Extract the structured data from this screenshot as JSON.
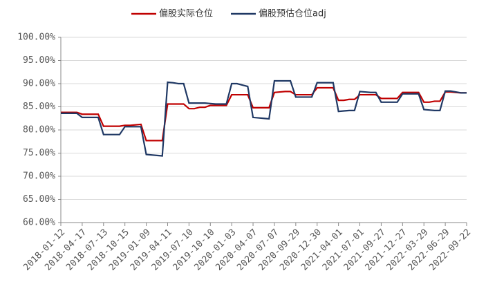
{
  "chart_data": {
    "type": "line",
    "categories": [
      "2018-01-12",
      null,
      null,
      null,
      "2018-04-17",
      null,
      null,
      null,
      "2018-07-13",
      null,
      null,
      null,
      "2018-10-15",
      null,
      null,
      null,
      "2019-01-09",
      null,
      null,
      null,
      "2019-04-11",
      null,
      null,
      null,
      "2019-07-10",
      null,
      null,
      null,
      "2019-10-10",
      null,
      null,
      null,
      "2020-01-03",
      null,
      null,
      null,
      "2020-04-07",
      null,
      null,
      null,
      "2020-07-07",
      null,
      null,
      null,
      "2020-09-29",
      null,
      null,
      null,
      "2020-12-30",
      null,
      null,
      null,
      "2021-04-01",
      null,
      null,
      null,
      "2021-07-01",
      null,
      null,
      null,
      "2021-09-27",
      null,
      null,
      null,
      "2021-12-27",
      null,
      null,
      null,
      "2022-03-29",
      null,
      null,
      null,
      "2022-06-29",
      null,
      null,
      null,
      "2022-09-22"
    ],
    "series": [
      {
        "name": "偏股实际仓位",
        "color": "#c00000",
        "values": [
          83.8,
          83.8,
          83.8,
          83.8,
          83.4,
          83.4,
          83.4,
          83.4,
          80.8,
          80.8,
          80.8,
          80.8,
          81.0,
          81.0,
          81.1,
          81.2,
          77.7,
          77.7,
          77.7,
          77.7,
          85.6,
          85.6,
          85.6,
          85.6,
          84.6,
          84.6,
          84.9,
          84.9,
          85.3,
          85.3,
          85.3,
          85.3,
          87.6,
          87.6,
          87.6,
          87.6,
          84.8,
          84.8,
          84.8,
          84.8,
          88.1,
          88.2,
          88.3,
          88.3,
          87.6,
          87.6,
          87.6,
          87.6,
          89.1,
          89.1,
          89.1,
          89.1,
          86.4,
          86.4,
          86.6,
          86.6,
          87.6,
          87.6,
          87.6,
          87.6,
          86.8,
          86.8,
          86.8,
          86.8,
          88.1,
          88.1,
          88.1,
          88.1,
          86.0,
          86.0,
          86.2,
          86.2,
          88.2,
          88.2,
          88.1,
          88.0,
          88.0
        ]
      },
      {
        "name": "偏股预估仓位adj",
        "color": "#1f3864",
        "values": [
          83.6,
          83.6,
          83.6,
          83.6,
          82.7,
          82.7,
          82.7,
          82.7,
          79.0,
          79.0,
          79.0,
          79.0,
          80.7,
          80.7,
          80.7,
          80.7,
          74.7,
          74.6,
          74.5,
          74.4,
          90.3,
          90.2,
          90.0,
          90.0,
          85.8,
          85.8,
          85.8,
          85.8,
          85.7,
          85.6,
          85.6,
          85.6,
          90.0,
          90.0,
          89.7,
          89.4,
          82.7,
          82.6,
          82.5,
          82.4,
          90.6,
          90.6,
          90.6,
          90.6,
          87.1,
          87.1,
          87.1,
          87.1,
          90.2,
          90.2,
          90.2,
          90.2,
          84.0,
          84.1,
          84.2,
          84.2,
          88.3,
          88.2,
          88.1,
          88.1,
          86.0,
          86.0,
          86.0,
          86.0,
          87.8,
          87.8,
          87.8,
          87.8,
          84.4,
          84.3,
          84.2,
          84.2,
          88.4,
          88.4,
          88.2,
          88.0,
          88.0
        ]
      }
    ],
    "ylim": [
      60,
      100
    ],
    "yticks": [
      {
        "value": 60,
        "label": "60.00%"
      },
      {
        "value": 65,
        "label": "65.00%"
      },
      {
        "value": 70,
        "label": "70.00%"
      },
      {
        "value": 75,
        "label": "75.00%"
      },
      {
        "value": 80,
        "label": "80.00%"
      },
      {
        "value": 85,
        "label": "85.00%"
      },
      {
        "value": 90,
        "label": "90.00%"
      },
      {
        "value": 95,
        "label": "95.00%"
      },
      {
        "value": 100,
        "label": "100.00%"
      }
    ],
    "grid": true
  }
}
